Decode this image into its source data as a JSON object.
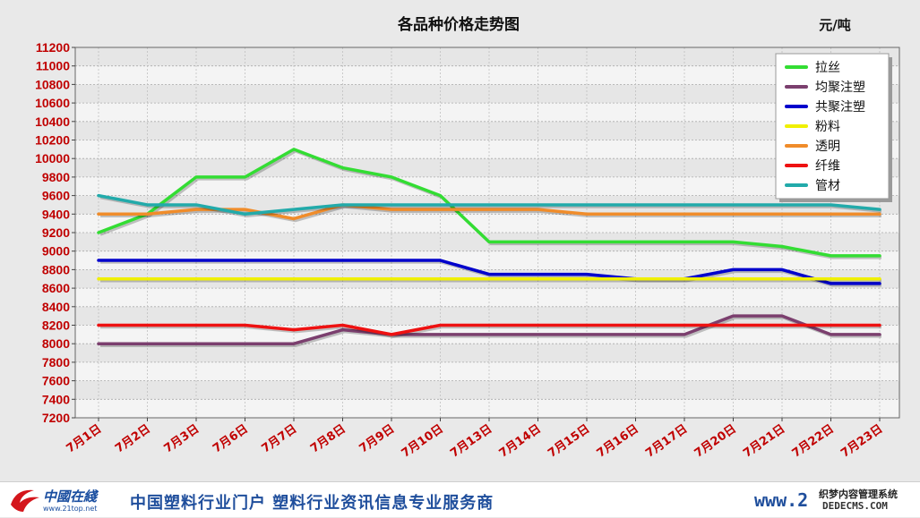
{
  "chart_data": {
    "type": "line",
    "title": "各品种价格走势图",
    "unit": "元/吨",
    "categories": [
      "7月1日",
      "7月2日",
      "7月3日",
      "7月6日",
      "7月7日",
      "7月8日",
      "7月9日",
      "7月10日",
      "7月13日",
      "7月14日",
      "7月15日",
      "7月16日",
      "7月17日",
      "7月20日",
      "7月21日",
      "7月22日",
      "7月23日"
    ],
    "ylim": [
      7200,
      11200
    ],
    "ytick_step": 200,
    "grid": true,
    "legend_position": "top-right",
    "series": [
      {
        "name": "拉丝",
        "color": "#33dd33",
        "values": [
          9200,
          9400,
          9800,
          9800,
          10100,
          9900,
          9800,
          9600,
          9100,
          9100,
          9100,
          9100,
          9100,
          9100,
          9050,
          8950,
          8950
        ]
      },
      {
        "name": "均聚注塑",
        "color": "#7b3f6e",
        "values": [
          8000,
          8000,
          8000,
          8000,
          8000,
          8150,
          8100,
          8100,
          8100,
          8100,
          8100,
          8100,
          8100,
          8300,
          8300,
          8100,
          8100
        ]
      },
      {
        "name": "共聚注塑",
        "color": "#0000cc",
        "values": [
          8900,
          8900,
          8900,
          8900,
          8900,
          8900,
          8900,
          8900,
          8750,
          8750,
          8750,
          8700,
          8700,
          8800,
          8800,
          8650,
          8650
        ]
      },
      {
        "name": "粉料",
        "color": "#f0f000",
        "values": [
          8700,
          8700,
          8700,
          8700,
          8700,
          8700,
          8700,
          8700,
          8700,
          8700,
          8700,
          8700,
          8700,
          8700,
          8700,
          8700,
          8700
        ]
      },
      {
        "name": "透明",
        "color": "#f08c2a",
        "values": [
          9400,
          9400,
          9450,
          9450,
          9350,
          9500,
          9450,
          9450,
          9450,
          9450,
          9400,
          9400,
          9400,
          9400,
          9400,
          9400,
          9400
        ]
      },
      {
        "name": "纤维",
        "color": "#ee1111",
        "values": [
          8200,
          8200,
          8200,
          8200,
          8150,
          8200,
          8100,
          8200,
          8200,
          8200,
          8200,
          8200,
          8200,
          8200,
          8200,
          8200,
          8200
        ]
      },
      {
        "name": "管材",
        "color": "#22aaaa",
        "values": [
          9600,
          9500,
          9500,
          9400,
          9450,
          9500,
          9500,
          9500,
          9500,
          9500,
          9500,
          9500,
          9500,
          9500,
          9500,
          9500,
          9450
        ]
      }
    ]
  },
  "footer": {
    "logo_text": "中國在綫",
    "logo_url": "www.21top.net",
    "slogan": "中国塑料行业门户  塑料行业资讯信息专业服务商",
    "site_url": "www.2",
    "watermark_line1": "织梦内容管理系统",
    "watermark_line2": "DEDECMS.COM"
  }
}
